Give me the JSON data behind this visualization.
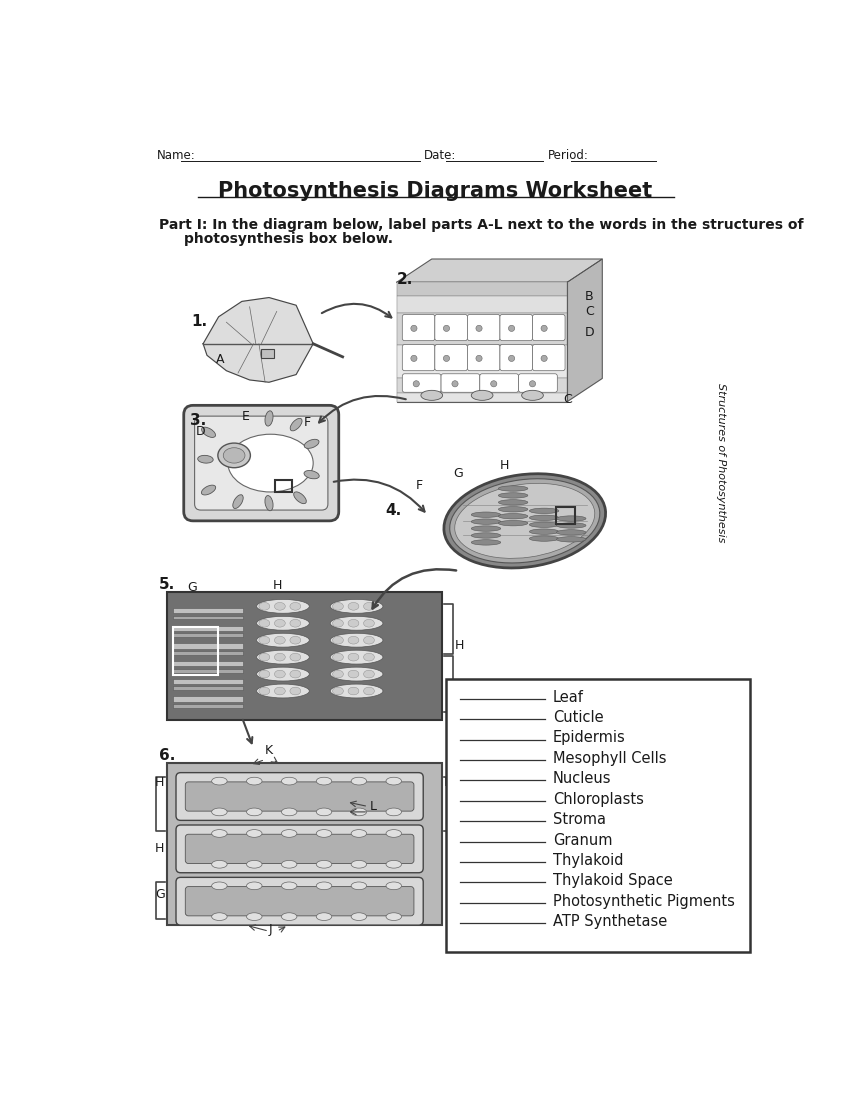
{
  "title": "Photosynthesis Diagrams Worksheet",
  "header_name": "Name:",
  "header_date": "Date:",
  "header_period": "Period:",
  "part1_line1": "Part I: In the diagram below, label parts A-L next to the words in the structures of",
  "part1_line2": "photosynthesis box below.",
  "sidebar_text": "Structures of Photosynthesis",
  "vocab_items": [
    "Leaf",
    "Cuticle",
    "Epidermis",
    "Mesophyll Cells",
    "Nucleus",
    "Chloroplasts",
    "Stroma",
    "Granum",
    "Thylakoid",
    "Thylakoid Space",
    "Photosynthetic Pigments",
    "ATP Synthetase"
  ],
  "bg_color": "#ffffff",
  "text_color": "#1a1a1a",
  "gray_dark": "#555555",
  "gray_mid": "#888888",
  "gray_light": "#cccccc",
  "gray_fill": "#d0d0d0",
  "gray_vlight": "#e8e8e8",
  "gray_darker": "#404040",
  "gray_box": "#aaaaaa"
}
